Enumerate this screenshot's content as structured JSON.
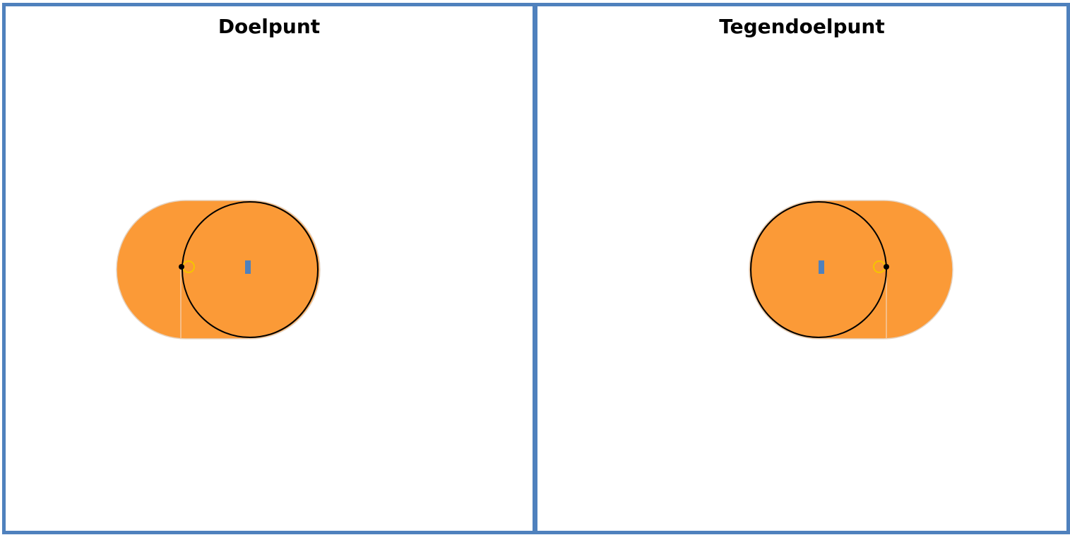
{
  "colors": {
    "frame": "#4f81bd",
    "shape_fill": "#fb9a37",
    "outline": "#000000",
    "marker_ring": "#f5c400",
    "center_marker": "#4f81bd"
  },
  "panels": [
    {
      "title": "Doelpunt"
    },
    {
      "title": "Tegendoelpunt"
    }
  ]
}
